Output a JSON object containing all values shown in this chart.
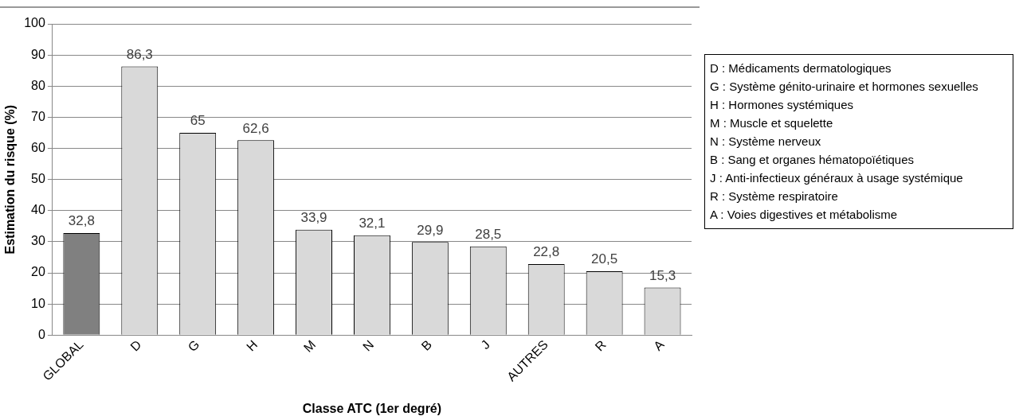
{
  "chart_data": {
    "type": "bar",
    "categories": [
      "GLOBAL",
      "D",
      "G",
      "H",
      "M",
      "N",
      "B",
      "J",
      "AUTRES",
      "R",
      "A"
    ],
    "values": [
      32.8,
      86.3,
      65,
      62.6,
      33.9,
      32.1,
      29.9,
      28.5,
      22.8,
      20.5,
      15.3
    ],
    "colors": [
      "#808080",
      "#d9d9d9",
      "#d9d9d9",
      "#d9d9d9",
      "#d9d9d9",
      "#d9d9d9",
      "#d9d9d9",
      "#d9d9d9",
      "#d9d9d9",
      "#d9d9d9",
      "#d9d9d9"
    ],
    "value_labels": [
      "32,8",
      "86,3",
      "65",
      "62,6",
      "33,9",
      "32,1",
      "29,9",
      "28,5",
      "22,8",
      "20,5",
      "15,3"
    ],
    "xlabel": "Classe ATC (1er degré)",
    "ylabel": "Estimation du risque (%)",
    "ylim": [
      0,
      100
    ],
    "yticks": [
      0,
      10,
      20,
      30,
      40,
      50,
      60,
      70,
      80,
      90,
      100
    ],
    "grid": "y",
    "legend": false,
    "annotations": [
      "D : Médicaments dermatologiques",
      "G : Système génito-urinaire et hormones sexuelles",
      "H : Hormones systémiques",
      "M : Muscle et squelette",
      "N : Système nerveux",
      "B : Sang et organes hématopoïétiques",
      "J : Anti-infectieux généraux à usage systémique",
      "R : Système respiratoire",
      "A : Voies digestives et métabolisme"
    ]
  }
}
